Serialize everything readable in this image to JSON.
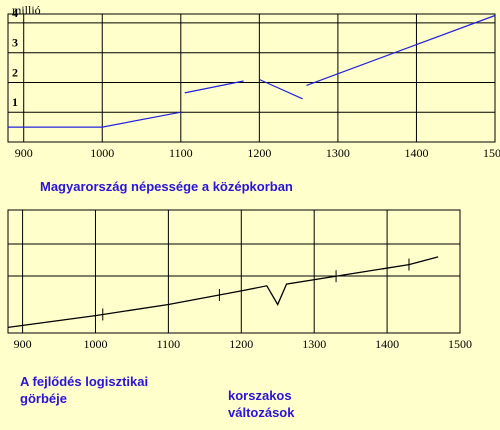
{
  "chart_data": [
    {
      "type": "line",
      "title": "Magyarország népessége a középkorban",
      "ylabel": "millió",
      "x_ticks": [
        "900",
        "1000",
        "1100",
        "1200",
        "1300",
        "1400",
        "1500"
      ],
      "y_ticks": [
        "1",
        "2",
        "3",
        "4"
      ],
      "xlim": [
        880,
        1500
      ],
      "ylim": [
        0,
        4.3
      ],
      "grid": true,
      "line_color": "#2222dd",
      "series": [
        {
          "segments": [
            [
              [
                880,
                0.5
              ],
              [
                1000,
                0.5
              ],
              [
                1100,
                1.0
              ]
            ],
            [
              [
                1105,
                1.65
              ],
              [
                1180,
                2.05
              ]
            ],
            [
              [
                1200,
                2.1
              ],
              [
                1255,
                1.45
              ]
            ],
            [
              [
                1260,
                1.9
              ],
              [
                1500,
                4.25
              ]
            ]
          ]
        }
      ]
    },
    {
      "type": "line",
      "x_ticks": [
        "900",
        "1000",
        "1100",
        "1200",
        "1300",
        "1400",
        "1500"
      ],
      "xlim": [
        880,
        1500
      ],
      "ylim": [
        0,
        1
      ],
      "grid": true,
      "line_color": "#000000",
      "series": [
        {
          "points": [
            [
              880,
              0.03
            ],
            [
              1000,
              0.17
            ],
            [
              1100,
              0.3
            ],
            [
              1200,
              0.46
            ],
            [
              1235,
              0.52
            ],
            [
              1250,
              0.3
            ],
            [
              1262,
              0.54
            ],
            [
              1350,
              0.66
            ],
            [
              1430,
              0.77
            ],
            [
              1470,
              0.86
            ]
          ]
        }
      ]
    }
  ],
  "captions": {
    "chart_title": "Magyarország népessége a középkorban",
    "logistic_line1": "A fejlődés logisztikai",
    "logistic_line2": "görbéje",
    "changes_line1": "korszakos",
    "changes_line2": "változások"
  }
}
